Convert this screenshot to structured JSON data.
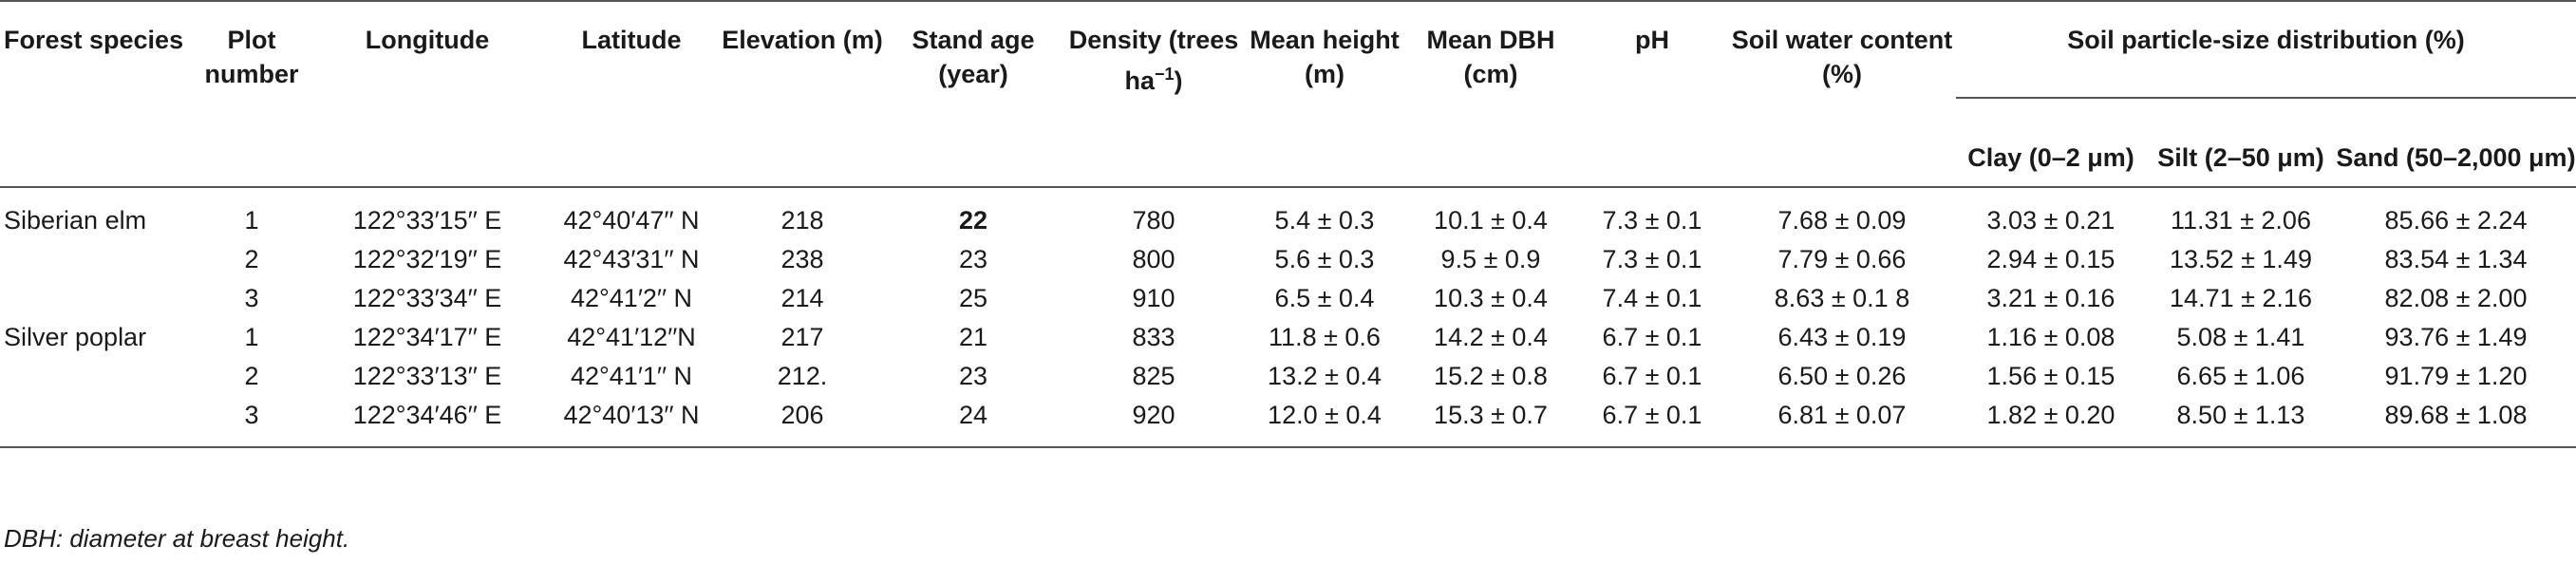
{
  "headers": {
    "forest_species": "Forest species",
    "plot_number": "Plot number",
    "longitude": "Longitude",
    "latitude": "Latitude",
    "elevation": "Elevation (m)",
    "stand_age": "Stand age (year)",
    "density": "Density (trees ha",
    "density_sup": "−1",
    "density_close": ")",
    "mean_height": "Mean height (m)",
    "mean_dbh": "Mean DBH (cm)",
    "ph": "pH",
    "soil_water": "Soil water content (%)",
    "soil_particle": "Soil particle-size distribution (%)",
    "clay": "Clay (0–2 μm)",
    "silt": "Silt (2–50 μm)",
    "sand": "Sand (50–2,000 μm)"
  },
  "rows": [
    {
      "species": "Siberian elm",
      "plot": "1",
      "longitude": "122°33′15′′ E",
      "latitude": "42°40′47′′ N",
      "elevation": "218",
      "stand_age": "22",
      "density": "780",
      "mean_height": "5.4 ± 0.3",
      "mean_dbh": "10.1 ± 0.4",
      "ph": "7.3 ± 0.1",
      "soil_water": "7.68 ± 0.09",
      "clay": "3.03 ± 0.21",
      "silt": "11.31 ± 2.06",
      "sand": "85.66 ± 2.24"
    },
    {
      "species": "",
      "plot": "2",
      "longitude": "122°32′19′′ E",
      "latitude": "42°43′31′′ N",
      "elevation": "238",
      "stand_age": "23",
      "density": "800",
      "mean_height": "5.6 ± 0.3",
      "mean_dbh": "9.5 ± 0.9",
      "ph": "7.3 ± 0.1",
      "soil_water": "7.79 ± 0.66",
      "clay": "2.94 ± 0.15",
      "silt": "13.52 ± 1.49",
      "sand": "83.54 ± 1.34"
    },
    {
      "species": "",
      "plot": "3",
      "longitude": "122°33′34′′ E",
      "latitude": "42°41′2′′ N",
      "elevation": "214",
      "stand_age": "25",
      "density": "910",
      "mean_height": "6.5 ± 0.4",
      "mean_dbh": "10.3 ± 0.4",
      "ph": "7.4 ± 0.1",
      "soil_water": "8.63 ± 0.1 8",
      "clay": "3.21 ± 0.16",
      "silt": "14.71 ± 2.16",
      "sand": "82.08 ± 2.00"
    },
    {
      "species": "Silver poplar",
      "plot": "1",
      "longitude": "122°34′17′′ E",
      "latitude": "42°41′12′′N",
      "elevation": "217",
      "stand_age": "21",
      "density": "833",
      "mean_height": "11.8 ± 0.6",
      "mean_dbh": "14.2 ± 0.4",
      "ph": "6.7 ± 0.1",
      "soil_water": "6.43 ± 0.19",
      "clay": "1.16 ± 0.08",
      "silt": "5.08 ± 1.41",
      "sand": "93.76 ± 1.49"
    },
    {
      "species": "",
      "plot": "2",
      "longitude": "122°33′13′′ E",
      "latitude": "42°41′1′′ N",
      "elevation": "212.",
      "stand_age": "23",
      "density": "825",
      "mean_height": "13.2 ± 0.4",
      "mean_dbh": "15.2 ± 0.8",
      "ph": "6.7 ± 0.1",
      "soil_water": "6.50 ± 0.26",
      "clay": "1.56 ± 0.15",
      "silt": "6.65 ± 1.06",
      "sand": "91.79 ± 1.20"
    },
    {
      "species": "",
      "plot": "3",
      "longitude": "122°34′46′′ E",
      "latitude": "42°40′13′′ N",
      "elevation": "206",
      "stand_age": "24",
      "density": "920",
      "mean_height": "12.0 ± 0.4",
      "mean_dbh": "15.3 ± 0.7",
      "ph": "6.7 ± 0.1",
      "soil_water": "6.81 ± 0.07",
      "clay": "1.82 ± 0.20",
      "silt": "8.50 ± 1.13",
      "sand": "89.68 ± 1.08"
    }
  ],
  "footnote": "DBH: diameter at breast height."
}
